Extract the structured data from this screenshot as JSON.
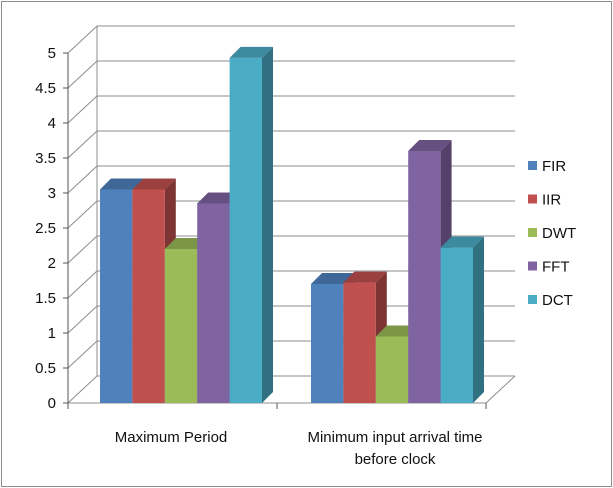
{
  "chart_data": {
    "type": "bar",
    "categories": [
      "Maximum Period",
      "Minimum input arrival time before clock"
    ],
    "category_label_lines": [
      [
        "Maximum Period"
      ],
      [
        "Minimum input arrival time",
        "before clock"
      ]
    ],
    "series": [
      {
        "name": "FIR",
        "values": [
          3.05,
          1.7
        ],
        "color": "#4f81bd"
      },
      {
        "name": "IIR",
        "values": [
          3.05,
          1.72
        ],
        "color": "#c0504d"
      },
      {
        "name": "DWT",
        "values": [
          2.2,
          0.95
        ],
        "color": "#9bbb59"
      },
      {
        "name": "FFT",
        "values": [
          2.85,
          3.6
        ],
        "color": "#8064a2"
      },
      {
        "name": "DCT",
        "values": [
          4.93,
          2.22
        ],
        "color": "#4bacc6"
      }
    ],
    "yticks": [
      "0",
      "0.5",
      "1",
      "1.5",
      "2",
      "2.5",
      "3",
      "3.5",
      "4",
      "4.5",
      "5"
    ],
    "ylim": [
      0,
      5
    ],
    "grid": true,
    "legend_position": "right",
    "title": "",
    "xlabel": "",
    "ylabel": ""
  }
}
